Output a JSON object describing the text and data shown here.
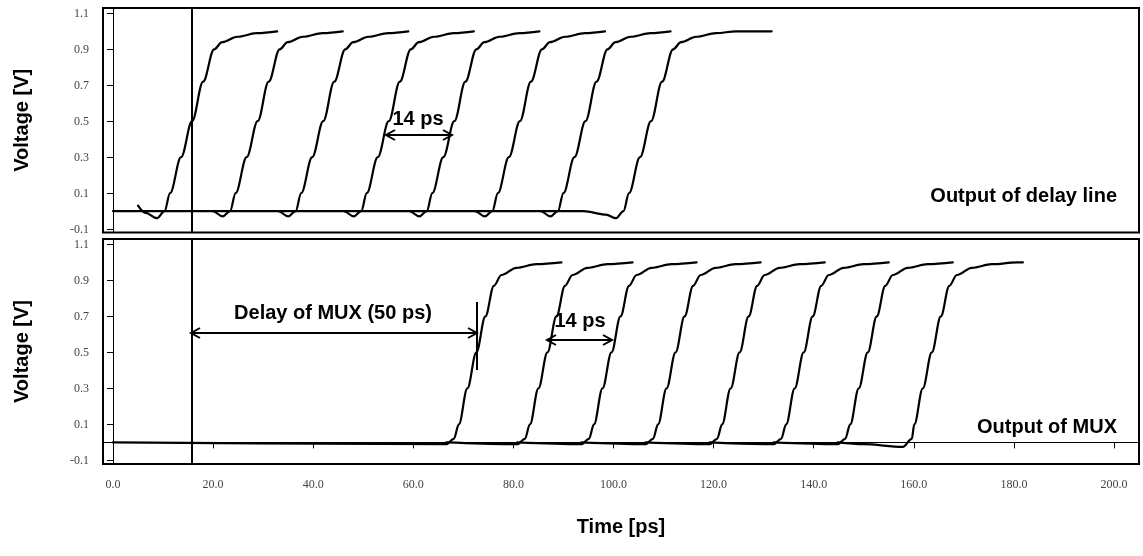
{
  "chart_data": [
    {
      "type": "line",
      "ylabel": "Voltage [V]",
      "tick_labels": "y",
      "marker": "none",
      "line_style": "solid",
      "xlim": [
        -2,
        205
      ],
      "ylim": [
        -0.12,
        1.13
      ],
      "yticks": [
        -0.1,
        0.1,
        0.3,
        0.5,
        0.7,
        0.9,
        1.1
      ],
      "annotations": [
        "14 ps",
        "Output of delay line"
      ],
      "ref_lines": [
        {
          "axis": "x",
          "value": 15.8,
          "color": "#000000"
        }
      ],
      "series": [
        {
          "color": "#000000",
          "x": [
            5,
            6.5,
            8.8,
            10.3,
            11.4,
            13.6,
            15.8,
            18,
            20.2,
            21.8,
            24.8,
            28.8,
            32.8
          ],
          "values": [
            0.03,
            -0.01,
            -0.04,
            0,
            0.1,
            0.3,
            0.5,
            0.72,
            0.9,
            0.94,
            0.97,
            0.99,
            1.0
          ]
        },
        {
          "color": "#000000",
          "x": [
            0,
            19.9,
            21.9,
            23.4,
            24.5,
            26.7,
            28.9,
            31.1,
            33.3,
            34.9,
            37.9,
            41.9,
            45.9
          ],
          "values": [
            0,
            0,
            -0.03,
            0,
            0.1,
            0.3,
            0.5,
            0.72,
            0.9,
            0.94,
            0.97,
            0.99,
            1.0
          ]
        },
        {
          "color": "#000000",
          "x": [
            19.9,
            33,
            35,
            36.5,
            37.6,
            39.8,
            42,
            44.2,
            46.4,
            48,
            51,
            55,
            59
          ],
          "values": [
            0,
            0,
            -0.03,
            0,
            0.1,
            0.3,
            0.5,
            0.72,
            0.9,
            0.94,
            0.97,
            0.99,
            1.0
          ]
        },
        {
          "color": "#000000",
          "x": [
            33,
            46.1,
            48.1,
            49.6,
            50.7,
            52.9,
            55.1,
            57.3,
            59.5,
            61.1,
            64.1,
            68.1,
            72.1
          ],
          "values": [
            0,
            0,
            -0.03,
            0,
            0.1,
            0.3,
            0.5,
            0.72,
            0.9,
            0.94,
            0.97,
            0.99,
            1.0
          ]
        },
        {
          "color": "#000000",
          "x": [
            46.1,
            59.2,
            61.2,
            62.7,
            63.8,
            66,
            68.2,
            70.4,
            72.6,
            74.2,
            77.2,
            81.2,
            85.2
          ],
          "values": [
            0,
            0,
            -0.03,
            0,
            0.1,
            0.3,
            0.5,
            0.72,
            0.9,
            0.94,
            0.97,
            0.99,
            1.0
          ]
        },
        {
          "color": "#000000",
          "x": [
            59.2,
            72.3,
            74.3,
            75.8,
            76.9,
            79.1,
            81.3,
            83.5,
            85.7,
            87.3,
            90.3,
            94.3,
            98.3
          ],
          "values": [
            0,
            0,
            -0.03,
            0,
            0.1,
            0.3,
            0.5,
            0.72,
            0.9,
            0.94,
            0.97,
            0.99,
            1.0
          ]
        },
        {
          "color": "#000000",
          "x": [
            72.3,
            85.4,
            87.4,
            88.9,
            90,
            92.2,
            94.4,
            96.6,
            98.8,
            100.4,
            103.4,
            107.4,
            111.4
          ],
          "values": [
            0,
            0,
            -0.03,
            0,
            0.1,
            0.3,
            0.5,
            0.72,
            0.9,
            0.94,
            0.97,
            0.99,
            1.0
          ]
        },
        {
          "color": "#000000",
          "x": [
            85.4,
            94,
            98.5,
            100.5,
            102,
            103.1,
            105.3,
            107.5,
            109.7,
            111.9,
            113.5,
            116.5,
            120.5,
            124.5,
            131.6
          ],
          "values": [
            0,
            0,
            -0.02,
            -0.04,
            0,
            0.1,
            0.3,
            0.5,
            0.72,
            0.9,
            0.94,
            0.97,
            0.99,
            1.0,
            1.0
          ]
        }
      ]
    },
    {
      "type": "line",
      "ylabel": "Voltage [V]",
      "xlabel": "Time [ps]",
      "marker": "none",
      "line_style": "solid",
      "xlim": [
        -2,
        205
      ],
      "xticks": [
        {
          "value": 0,
          "label": "0.0"
        },
        {
          "value": 20,
          "label": "20.0"
        },
        {
          "value": 40,
          "label": "40.0"
        },
        {
          "value": 60,
          "label": "60.0"
        },
        {
          "value": 80,
          "label": "80.0"
        },
        {
          "value": 100,
          "label": "100.0"
        },
        {
          "value": 120,
          "label": "120.0"
        },
        {
          "value": 140,
          "label": "140.0"
        },
        {
          "value": 160,
          "label": "160.0"
        },
        {
          "value": 180,
          "label": "180.0"
        },
        {
          "value": 200,
          "label": "200.0"
        }
      ],
      "ylim": [
        -0.12,
        1.13
      ],
      "yticks": [
        -0.1,
        0.1,
        0.3,
        0.5,
        0.7,
        0.9,
        1.1
      ],
      "annotations": [
        "Delay of MUX (50 ps)",
        "14 ps",
        "Output of MUX"
      ],
      "ref_lines": [
        {
          "axis": "x",
          "value": 15.8,
          "color": "#000000"
        }
      ],
      "series": [
        {
          "color": "#000000",
          "x": [
            0,
            66.6,
            68.1,
            69.1,
            70.8,
            72.6,
            74.4,
            76.1,
            77.6,
            80.6,
            84.6,
            89.6
          ],
          "values": [
            0,
            -0.01,
            0.02,
            0.1,
            0.3,
            0.5,
            0.7,
            0.87,
            0.93,
            0.97,
            0.99,
            1.0
          ]
        },
        {
          "color": "#000000",
          "x": [
            66.6,
            80.8,
            82.3,
            83.3,
            85,
            86.8,
            88.6,
            90.3,
            91.8,
            94.8,
            98.8,
            103.8
          ],
          "values": [
            0,
            -0.01,
            0.02,
            0.1,
            0.3,
            0.5,
            0.7,
            0.87,
            0.93,
            0.97,
            0.99,
            1.0
          ]
        },
        {
          "color": "#000000",
          "x": [
            80.8,
            93.6,
            95.1,
            96.1,
            97.8,
            99.6,
            101.4,
            103.1,
            104.6,
            107.6,
            111.6,
            116.6
          ],
          "values": [
            0,
            -0.01,
            0.02,
            0.1,
            0.3,
            0.5,
            0.7,
            0.87,
            0.93,
            0.97,
            0.99,
            1.0
          ]
        },
        {
          "color": "#000000",
          "x": [
            93.6,
            106.4,
            107.9,
            108.9,
            110.6,
            112.4,
            114.2,
            115.9,
            117.4,
            120.4,
            124.4,
            129.4
          ],
          "values": [
            0,
            -0.01,
            0.02,
            0.1,
            0.3,
            0.5,
            0.7,
            0.87,
            0.93,
            0.97,
            0.99,
            1.0
          ]
        },
        {
          "color": "#000000",
          "x": [
            106.4,
            119.2,
            120.7,
            121.7,
            123.4,
            125.2,
            127,
            128.7,
            130.2,
            133.2,
            137.2,
            142.2
          ],
          "values": [
            0,
            -0.01,
            0.02,
            0.1,
            0.3,
            0.5,
            0.7,
            0.87,
            0.93,
            0.97,
            0.99,
            1.0
          ]
        },
        {
          "color": "#000000",
          "x": [
            119.2,
            132,
            133.5,
            134.5,
            136.2,
            138,
            139.8,
            141.5,
            143,
            146,
            150,
            155
          ],
          "values": [
            0,
            -0.01,
            0.02,
            0.1,
            0.3,
            0.5,
            0.7,
            0.87,
            0.93,
            0.97,
            0.99,
            1.0
          ]
        },
        {
          "color": "#000000",
          "x": [
            132,
            144.8,
            146.3,
            147.3,
            149,
            150.8,
            152.6,
            154.3,
            155.8,
            158.8,
            162.8,
            167.8
          ],
          "values": [
            0,
            -0.01,
            0.02,
            0.1,
            0.3,
            0.5,
            0.7,
            0.87,
            0.93,
            0.97,
            0.99,
            1.0
          ]
        },
        {
          "color": "#000000",
          "x": [
            144.8,
            150,
            157.8,
            159.6,
            160.1,
            161.8,
            163.6,
            165.4,
            167.1,
            168.6,
            171.6,
            175.6,
            180.6,
            181.8
          ],
          "values": [
            0,
            -0.01,
            -0.025,
            0.02,
            0.1,
            0.3,
            0.5,
            0.7,
            0.87,
            0.93,
            0.97,
            0.99,
            1.0,
            1.0
          ]
        }
      ]
    }
  ]
}
